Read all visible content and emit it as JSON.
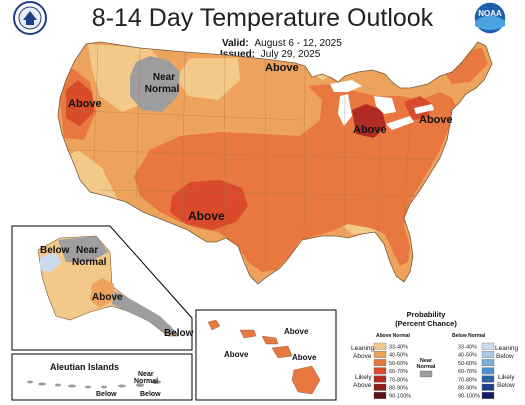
{
  "header": {
    "title": "8-14 Day Temperature Outlook",
    "valid_label": "Valid:",
    "valid_value": "August 6 - 12, 2025",
    "issued_label": "Issued:",
    "issued_value": "July 29, 2025"
  },
  "map_labels": {
    "conus_above_pnw": "Above",
    "conus_near_normal_1": "Near",
    "conus_near_normal_2": "Normal",
    "conus_above_north": "Above",
    "conus_above_southwest": "Above",
    "conus_above_greatlakes": "Above",
    "conus_above_northeast": "Above",
    "alaska_below": "Below",
    "alaska_near_1": "Near",
    "alaska_near_2": "Normal",
    "alaska_above": "Above",
    "alaska_below_se": "Below",
    "aleutian_title": "Aleutian Islands",
    "aleutian_near_1": "Near",
    "aleutian_near_2": "Normal",
    "aleutian_below_1": "Below",
    "aleutian_below_2": "Below",
    "hawaii_above_1": "Above",
    "hawaii_above_2": "Above",
    "hawaii_above_3": "Above"
  },
  "legend": {
    "title_1": "Probability",
    "title_2": "(Percent Chance)",
    "above_header": "Above Normal",
    "below_header": "Below Normal",
    "near_normal_1": "Near",
    "near_normal_2": "Normal",
    "leaning_above_1": "Leaning",
    "leaning_above_2": "Above",
    "likely_above_1": "Likely",
    "likely_above_2": "Above",
    "leaning_below_1": "Leaning",
    "leaning_below_2": "Below",
    "likely_below_1": "Likely",
    "likely_below_2": "Below",
    "above_classes": [
      "33-40%",
      "40-50%",
      "50-60%",
      "60-70%",
      "70-80%",
      "80-90%",
      "90-100%"
    ],
    "below_classes": [
      "33-40%",
      "40-50%",
      "50-60%",
      "60-70%",
      "70-80%",
      "80-90%",
      "90-100%"
    ],
    "above_colors": [
      "#f3c98a",
      "#eda35c",
      "#e8783f",
      "#d94b2a",
      "#b02c22",
      "#8a1e1b",
      "#5e1010"
    ],
    "below_colors": [
      "#c9dcef",
      "#a9c8e8",
      "#7eaedc",
      "#4d8cc8",
      "#2a62a8",
      "#1f3f87",
      "#16206a"
    ],
    "near_color": "#9e9e9e"
  },
  "logos": {
    "left": "department-of-commerce-seal",
    "right": "noaa-logo",
    "right_text": "NOAA"
  }
}
